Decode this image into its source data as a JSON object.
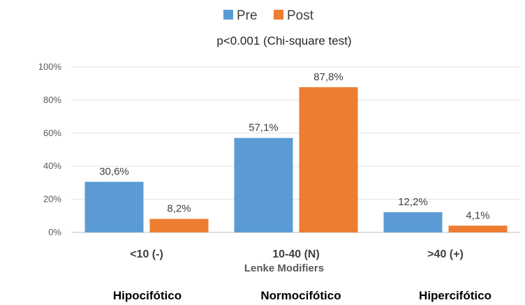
{
  "chart_data": {
    "type": "bar",
    "title": "p<0.001 (Chi-square test)",
    "xlabel": "Lenke Modifiers",
    "ylabel": "",
    "categories": [
      "<10 (-)",
      "10-40 (N)",
      ">40 (+)"
    ],
    "category_descriptions": [
      "Hipocifótico",
      "Normocifótico",
      "Hipercifótico"
    ],
    "series": [
      {
        "name": "Pre",
        "values": [
          30.6,
          57.1,
          12.2
        ],
        "labels": [
          "30,6%",
          "57,1%",
          "12,2%"
        ],
        "color": "#5b9bd5"
      },
      {
        "name": "Post",
        "values": [
          8.2,
          87.8,
          4.1
        ],
        "labels": [
          "8,2%",
          "87,8%",
          "4,1%"
        ],
        "color": "#ed7d31"
      }
    ],
    "ylim": [
      0,
      100
    ],
    "yticks": [
      "0%",
      "20%",
      "40%",
      "60%",
      "80%",
      "100%"
    ],
    "grid": true,
    "legend_position": "top"
  }
}
